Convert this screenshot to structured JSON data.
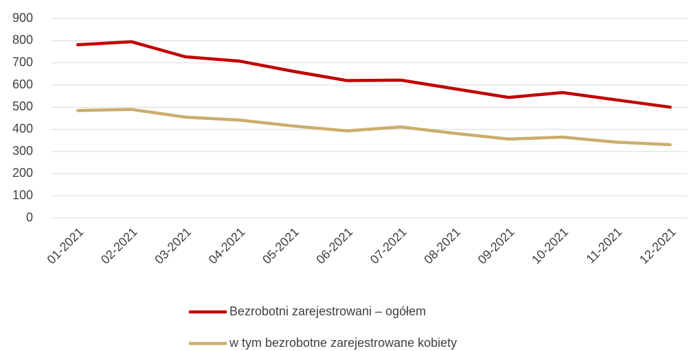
{
  "chart_data": {
    "type": "line",
    "categories": [
      "01-2021",
      "02-2021",
      "03-2021",
      "04-2021",
      "05-2021",
      "06-2021",
      "07-2021",
      "08-2021",
      "09-2021",
      "10-2021",
      "11-2021",
      "12-2021"
    ],
    "series": [
      {
        "name": "Bezrobotni zarejestrowani – ogółem",
        "color": "#c00000",
        "values": [
          782,
          795,
          727,
          708,
          662,
          620,
          622,
          583,
          544,
          566,
          533,
          500
        ]
      },
      {
        "name": "w tym bezrobotne zarejestrowane kobiety",
        "color": "#cdac6c",
        "values": [
          485,
          490,
          455,
          442,
          415,
          393,
          411,
          382,
          356,
          365,
          342,
          331
        ]
      }
    ],
    "ylim": [
      0,
      900
    ],
    "yticks": [
      0,
      100,
      200,
      300,
      400,
      500,
      600,
      700,
      800,
      900
    ],
    "grid": true,
    "legend": "bottom"
  }
}
